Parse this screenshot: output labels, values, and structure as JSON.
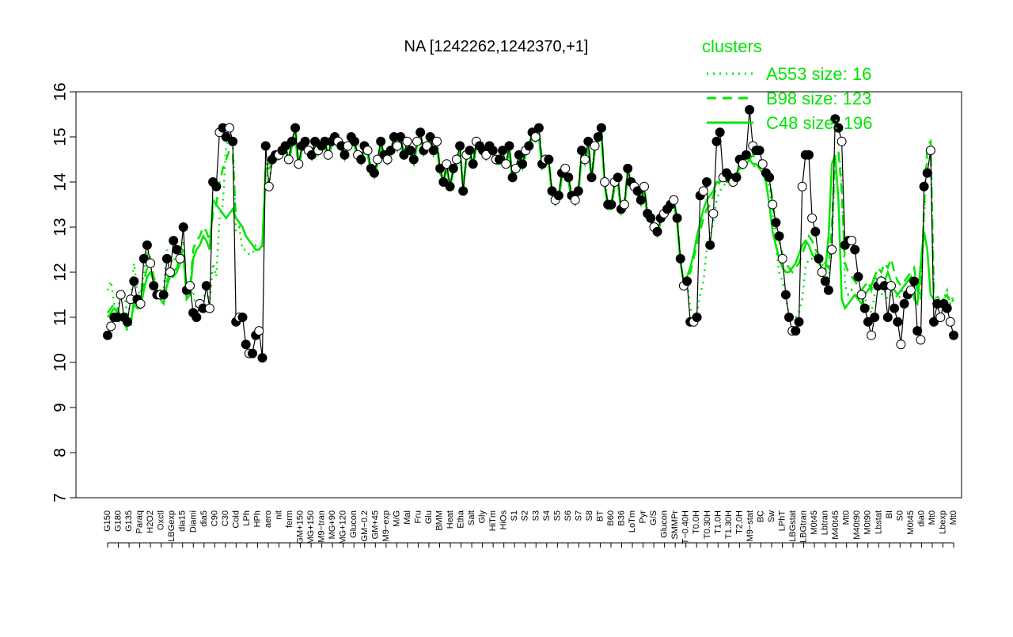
{
  "chart_data": {
    "type": "line",
    "title": "NA [1242262,1242370,+1]",
    "xlabel": "",
    "ylabel": "",
    "ylim": [
      7,
      16
    ],
    "yticks": [
      7,
      8,
      9,
      10,
      11,
      12,
      13,
      14,
      15,
      16
    ],
    "grid": false,
    "legend": {
      "title": "clusters",
      "placement": "top-right",
      "entries": [
        "A553 size: 16",
        "B98 size: 123",
        "C48 size: 196"
      ],
      "styles": [
        "dotted",
        "dashed",
        "solid"
      ],
      "color": "#00e600"
    },
    "x_tick_labels": [
      "G150",
      "G180",
      "G135",
      "Paraq",
      "H2O2",
      "Oxctl",
      "LBGexp",
      "dia15",
      "Diami",
      "dia5",
      "C90",
      "C30",
      "Cold",
      "LPh",
      "HPh",
      "aero",
      "nit",
      "ferm",
      "GM+150",
      "MG+150",
      "M9−tran",
      "MG+90",
      "MG+120",
      "Glucon",
      "GM−0.2",
      "GM+45",
      "M9−exp",
      "M/G",
      "Mal",
      "Fru",
      "Glu",
      "BMM",
      "Heat",
      "Etha",
      "Salt",
      "Gly",
      "HiTm",
      "HiOs",
      "S1",
      "S2",
      "S3",
      "S4",
      "S5",
      "S6",
      "S7",
      "S8",
      "BT",
      "B60",
      "B36",
      "LoTm",
      "Pyr",
      "G/S",
      "Glucon",
      "SMMPr",
      "T−0.40H",
      "T0.0H",
      "T0.30H",
      "T1.0H",
      "T1.30H",
      "T2.0H",
      "M9−stat",
      "BC",
      "Sw",
      "LPhT",
      "LBGstat",
      "LBGtran",
      "M0t45",
      "Lbtran",
      "M40t45",
      "Mt0",
      "M40t90",
      "M0t90",
      "Lbstat",
      "BI",
      "S0",
      "M0t45",
      "dia0",
      "Mt0",
      "Lbexp",
      "Mt0"
    ],
    "series_styles": {
      "A553": {
        "dash": "dotted",
        "color": "#00e600"
      },
      "B98": {
        "dash": "dashed",
        "color": "#00e600"
      },
      "C48": {
        "dash": "solid",
        "color": "#00e600"
      }
    },
    "observed": [
      10.6,
      10.8,
      11.0,
      11.0,
      11.5,
      11.0,
      10.9,
      11.4,
      11.8,
      11.4,
      11.3,
      12.3,
      12.6,
      12.2,
      11.7,
      11.5,
      11.5,
      11.5,
      12.3,
      12.0,
      12.7,
      12.5,
      12.3,
      13.0,
      11.6,
      11.7,
      11.1,
      11.0,
      11.3,
      11.2,
      11.7,
      11.2,
      14.0,
      13.9,
      15.1,
      15.2,
      15.0,
      15.2,
      14.9,
      10.9,
      11.0,
      11.0,
      10.4,
      10.2,
      10.2,
      10.6,
      10.7,
      10.1,
      14.8,
      13.9,
      14.5,
      14.6,
      14.6,
      14.7,
      14.8,
      14.5,
      14.9,
      15.2,
      14.4,
      14.8,
      14.9,
      14.7,
      14.6,
      14.9,
      14.7,
      14.8,
      14.9,
      14.6,
      14.9,
      15.0,
      14.9,
      14.8,
      14.6,
      14.8,
      15.0,
      14.9,
      14.6,
      14.5,
      14.8,
      14.7,
      14.3,
      14.2,
      14.5,
      14.9,
      14.6,
      14.5,
      14.7,
      15.0,
      14.8,
      15.0,
      14.6,
      14.9,
      14.7,
      14.5,
      14.9,
      15.1,
      14.7,
      14.8,
      15.0,
      14.7,
      14.9,
      14.3,
      14.0,
      14.4,
      13.9,
      14.3,
      14.5,
      14.8,
      13.8,
      14.6,
      14.7,
      14.4,
      14.9,
      14.8,
      14.7,
      14.6,
      14.8,
      14.7,
      14.5,
      14.5,
      14.7,
      14.4,
      14.8,
      14.1,
      14.3,
      14.6,
      14.4,
      14.7,
      14.8,
      15.1,
      15.0,
      15.2,
      14.4,
      14.5,
      14.5,
      13.8,
      13.6,
      13.7,
      14.2,
      14.3,
      14.1,
      13.7,
      13.6,
      13.8,
      14.7,
      14.5,
      14.9,
      14.1,
      14.8,
      15.0,
      15.2,
      14.0,
      13.5,
      13.5,
      14.0,
      14.1,
      13.4,
      13.5,
      14.3,
      14.0,
      13.9,
      13.8,
      13.6,
      13.9,
      13.3,
      13.2,
      13.0,
      12.9,
      13.2,
      13.3,
      13.4,
      13.5,
      13.6,
      13.2,
      12.3,
      11.7,
      11.8,
      10.9,
      10.9,
      11.0,
      13.7,
      13.8,
      14.0,
      12.6,
      13.3,
      14.9,
      15.1,
      14.1,
      14.2,
      14.1,
      14.0,
      14.1,
      14.5,
      14.4,
      14.6,
      15.6,
      14.8,
      14.7,
      14.7,
      14.4,
      14.2,
      14.1,
      13.5,
      13.1,
      12.8,
      12.3,
      11.5,
      11.0,
      10.7,
      10.7,
      10.9,
      13.9,
      14.6,
      14.6,
      13.2,
      12.9,
      12.3,
      12.0,
      11.8,
      11.6,
      12.5,
      15.4,
      15.2,
      14.9,
      12.6,
      12.7,
      12.7,
      12.5,
      11.9,
      11.5,
      11.2,
      10.9,
      10.6,
      11.0,
      11.7,
      11.8,
      11.7,
      11.0,
      11.7,
      11.2,
      10.9,
      10.4,
      11.3,
      11.5,
      11.6,
      11.8,
      10.7,
      10.5,
      13.9,
      14.2,
      14.7,
      10.9,
      11.3,
      11.0,
      11.3,
      11.2,
      10.9,
      10.6
    ],
    "A553": [
      11.6,
      11.8,
      11.3,
      11.1,
      11.5,
      11.6,
      11.0,
      11.4,
      12.2,
      11.6,
      11.5,
      12.0,
      12.4,
      12.2,
      11.9,
      11.7,
      11.6,
      11.6,
      12.5,
      12.3,
      12.2,
      12.6,
      12.3,
      12.7,
      11.4,
      11.5,
      11.6,
      11.1,
      11.2,
      11.4,
      11.6,
      11.3,
      12.2,
      11.9,
      13.2,
      13.5,
      14.8,
      15.0,
      14.9,
      12.9,
      13.0,
      12.5,
      12.5,
      12.4,
      12.4,
      12.6,
      12.6,
      12.5,
      14.2,
      13.9,
      14.5,
      14.6,
      14.6,
      14.7,
      14.8,
      14.5,
      14.9,
      15.2,
      14.4,
      14.8,
      14.9,
      14.7,
      14.6,
      14.9,
      14.7,
      14.8,
      14.9,
      14.6,
      14.9,
      15.0,
      14.9,
      14.8,
      14.6,
      14.8,
      15.0,
      14.9,
      14.6,
      14.5,
      14.8,
      14.7,
      14.3,
      14.2,
      14.5,
      14.9,
      14.6,
      14.5,
      14.7,
      15.0,
      14.8,
      15.0,
      14.6,
      14.9,
      14.7,
      14.5,
      14.9,
      15.1,
      14.7,
      14.8,
      15.0,
      14.7,
      14.9,
      14.3,
      14.0,
      14.4,
      13.9,
      14.3,
      14.5,
      14.8,
      13.8,
      14.6,
      14.7,
      14.4,
      14.9,
      14.8,
      14.7,
      14.6,
      14.8,
      14.7,
      14.5,
      14.5,
      14.7,
      14.4,
      14.8,
      14.1,
      14.3,
      14.6,
      14.4,
      14.7,
      14.8,
      15.1,
      15.0,
      15.2,
      14.4,
      14.5,
      14.5,
      13.8,
      13.6,
      13.7,
      14.2,
      14.3,
      14.1,
      13.7,
      13.6,
      13.8,
      14.7,
      14.5,
      14.9,
      14.1,
      14.8,
      15.0,
      15.2,
      14.0,
      13.5,
      13.5,
      14.0,
      14.1,
      13.4,
      13.5,
      14.3,
      14.0,
      13.9,
      13.8,
      13.6,
      13.9,
      13.3,
      13.2,
      13.0,
      12.9,
      13.2,
      13.3,
      13.4,
      13.5,
      13.6,
      13.2,
      12.3,
      11.7,
      11.8,
      11.2,
      11.0,
      11.1,
      11.5,
      11.8,
      12.5,
      12.8,
      13.1,
      13.6,
      13.8,
      13.9,
      14.0,
      14.1,
      14.0,
      14.1,
      14.2,
      14.3,
      14.4,
      14.5,
      14.4,
      14.3,
      14.4,
      14.2,
      14.1,
      13.9,
      13.4,
      12.6,
      12.0,
      11.8,
      11.4,
      11.1,
      11.0,
      11.0,
      11.1,
      11.4,
      12.1,
      12.3,
      12.3,
      12.4,
      12.3,
      12.2,
      12.0,
      11.8,
      12.6,
      14.5,
      14.6,
      14.2,
      11.7,
      11.5,
      11.6,
      11.4,
      11.5,
      11.3,
      11.4,
      11.3,
      11.1,
      11.5,
      11.6,
      11.5,
      11.6,
      11.4,
      11.5,
      11.6,
      11.4,
      11.5,
      11.7,
      11.8,
      11.8,
      11.9,
      11.6,
      11.5,
      13.2,
      14.6,
      14.8,
      11.5,
      11.4,
      11.2,
      11.4,
      11.6,
      11.3,
      11.5
    ],
    "B98": [
      11.1,
      11.2,
      11.3,
      11.2,
      11.0,
      10.9,
      10.7,
      10.8,
      11.4,
      11.3,
      11.3,
      11.8,
      12.1,
      12.3,
      11.9,
      11.6,
      11.5,
      11.4,
      11.8,
      12.0,
      12.0,
      12.1,
      12.3,
      12.5,
      11.5,
      11.6,
      12.5,
      12.7,
      12.8,
      13.0,
      12.9,
      12.7,
      13.3,
      13.5,
      14.0,
      14.3,
      14.5,
      14.7,
      14.6,
      13.2,
      13.1,
      13.0,
      12.8,
      12.7,
      12.6,
      12.5,
      12.5,
      12.6,
      14.4,
      14.4,
      14.5,
      14.6,
      14.6,
      14.7,
      14.8,
      14.5,
      14.9,
      15.2,
      14.4,
      14.8,
      14.9,
      14.7,
      14.6,
      14.9,
      14.7,
      14.8,
      14.9,
      14.6,
      14.9,
      15.0,
      14.9,
      14.8,
      14.6,
      14.8,
      15.0,
      14.9,
      14.6,
      14.5,
      14.8,
      14.7,
      14.3,
      14.2,
      14.5,
      14.9,
      14.6,
      14.5,
      14.7,
      15.0,
      14.8,
      15.0,
      14.6,
      14.9,
      14.7,
      14.5,
      14.9,
      15.1,
      14.7,
      14.8,
      15.0,
      14.7,
      14.9,
      14.3,
      14.0,
      14.4,
      13.9,
      14.3,
      14.5,
      14.8,
      13.8,
      14.6,
      14.7,
      14.4,
      14.9,
      14.8,
      14.7,
      14.6,
      14.8,
      14.7,
      14.5,
      14.5,
      14.7,
      14.4,
      14.8,
      14.1,
      14.3,
      14.6,
      14.4,
      14.7,
      14.8,
      15.1,
      15.0,
      15.2,
      14.4,
      14.5,
      14.5,
      13.8,
      13.6,
      13.7,
      14.2,
      14.3,
      14.1,
      13.7,
      13.6,
      13.8,
      14.7,
      14.5,
      14.9,
      14.1,
      14.8,
      15.0,
      15.2,
      14.0,
      13.5,
      13.5,
      14.0,
      14.1,
      13.4,
      13.5,
      14.3,
      14.0,
      13.9,
      13.8,
      13.6,
      13.9,
      13.3,
      13.2,
      13.0,
      12.9,
      13.2,
      13.3,
      13.4,
      13.5,
      13.6,
      13.2,
      12.3,
      11.7,
      11.8,
      12.0,
      12.3,
      12.6,
      12.9,
      13.2,
      13.4,
      13.5,
      13.7,
      13.9,
      14.0,
      14.1,
      14.0,
      14.0,
      14.1,
      14.2,
      14.3,
      14.4,
      14.4,
      14.5,
      14.6,
      14.5,
      14.5,
      14.4,
      14.3,
      14.1,
      13.6,
      13.0,
      12.7,
      12.4,
      12.2,
      12.1,
      12.0,
      12.1,
      12.2,
      12.4,
      12.6,
      12.8,
      12.7,
      12.5,
      12.4,
      12.3,
      12.2,
      12.1,
      13.0,
      14.6,
      14.7,
      13.8,
      12.2,
      12.0,
      11.9,
      11.8,
      11.7,
      11.6,
      11.7,
      11.8,
      11.6,
      11.9,
      12.1,
      12.0,
      12.2,
      12.1,
      12.3,
      12.0,
      11.8,
      11.7,
      11.8,
      11.9,
      12.0,
      12.1,
      11.6,
      11.4,
      13.4,
      14.8,
      14.9,
      11.6,
      11.5,
      11.3,
      11.4,
      11.5,
      11.3,
      11.4
    ],
    "C48": [
      11.0,
      11.1,
      11.2,
      11.1,
      11.0,
      10.9,
      10.8,
      10.9,
      11.3,
      11.2,
      11.2,
      11.6,
      11.9,
      12.0,
      11.8,
      11.5,
      11.4,
      11.3,
      11.7,
      11.9,
      11.9,
      12.0,
      12.2,
      12.4,
      11.4,
      11.5,
      12.3,
      12.5,
      12.6,
      12.8,
      12.7,
      12.5,
      13.6,
      13.5,
      13.4,
      13.3,
      13.2,
      13.3,
      13.4,
      13.2,
      13.1,
      13.0,
      12.8,
      12.7,
      12.6,
      12.5,
      12.5,
      12.6,
      14.3,
      14.3,
      14.4,
      14.5,
      14.5,
      14.6,
      14.7,
      14.4,
      14.8,
      15.0,
      14.3,
      14.7,
      14.8,
      14.6,
      14.5,
      14.8,
      14.6,
      14.7,
      14.8,
      14.5,
      14.8,
      14.9,
      14.8,
      14.7,
      14.5,
      14.7,
      14.9,
      14.8,
      14.5,
      14.4,
      14.7,
      14.6,
      14.2,
      14.1,
      14.4,
      14.8,
      14.5,
      14.4,
      14.6,
      14.9,
      14.7,
      14.9,
      14.5,
      14.8,
      14.6,
      14.4,
      14.8,
      15.0,
      14.6,
      14.7,
      14.9,
      14.6,
      14.8,
      14.2,
      14.0,
      14.3,
      13.9,
      14.2,
      14.4,
      14.7,
      13.9,
      14.5,
      14.6,
      14.3,
      14.8,
      14.7,
      14.6,
      14.5,
      14.7,
      14.6,
      14.4,
      14.4,
      14.6,
      14.3,
      14.7,
      14.0,
      14.2,
      14.5,
      14.3,
      14.6,
      14.7,
      15.0,
      14.9,
      15.0,
      14.3,
      14.4,
      14.4,
      13.7,
      13.5,
      13.6,
      14.1,
      14.2,
      14.0,
      13.6,
      13.5,
      13.7,
      14.6,
      14.4,
      14.8,
      14.0,
      14.7,
      14.9,
      15.0,
      13.9,
      13.4,
      13.4,
      13.9,
      14.0,
      13.3,
      13.4,
      14.2,
      13.9,
      13.8,
      13.7,
      13.5,
      13.8,
      13.2,
      13.1,
      12.9,
      12.8,
      13.1,
      13.2,
      13.3,
      13.4,
      13.5,
      13.1,
      12.2,
      11.8,
      11.9,
      12.1,
      12.4,
      12.8,
      13.1,
      13.4,
      13.6,
      13.7,
      13.8,
      14.0,
      14.0,
      14.1,
      14.0,
      14.0,
      14.1,
      14.2,
      14.3,
      14.3,
      14.4,
      14.5,
      14.4,
      14.4,
      14.3,
      14.2,
      14.0,
      13.5,
      12.9,
      12.6,
      12.3,
      12.1,
      12.0,
      12.0,
      12.1,
      12.2,
      12.4,
      12.6,
      12.7,
      12.6,
      12.4,
      12.3,
      12.2,
      12.1,
      12.0,
      12.8,
      14.4,
      14.6,
      13.6,
      11.4,
      11.2,
      11.3,
      11.4,
      11.5,
      11.4,
      11.3,
      11.5,
      11.6,
      11.7,
      11.9,
      11.8,
      11.9,
      11.8,
      12.0,
      11.8,
      11.6,
      11.5,
      11.6,
      11.7,
      11.8,
      11.9,
      11.4,
      11.3,
      12.2,
      12.9,
      12.5,
      11.5,
      11.4,
      11.2,
      11.3,
      11.4,
      11.2,
      11.3
    ]
  }
}
